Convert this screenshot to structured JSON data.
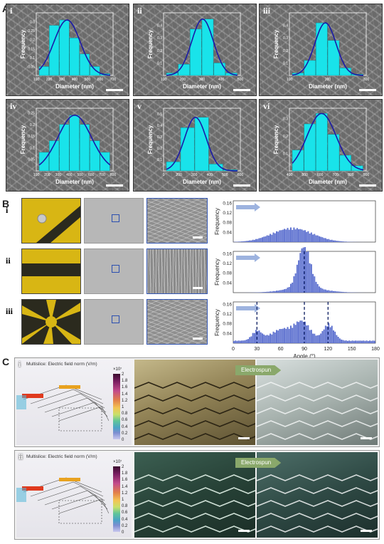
{
  "panel_A": {
    "letter": "A",
    "subpanels": [
      {
        "roman": "i",
        "ylabel": "Frequency",
        "xlabel": "Diameter (nm)",
        "xticks": [
          "100",
          "200",
          "300",
          "400",
          "500",
          "600",
          "700"
        ],
        "yticks": [
          "0.05",
          "0.1",
          "0.15",
          "0.2",
          "0.25",
          "0.3"
        ],
        "bars": [
          0.05,
          0.28,
          0.31,
          0.21,
          0.12,
          0.05,
          0.01
        ],
        "ymax": 0.35
      },
      {
        "roman": "ii",
        "ylabel": "Frequency",
        "xlabel": "Diameter (nm)",
        "xticks": [
          "100",
          "200",
          "300",
          "400",
          "500"
        ],
        "yticks": [
          "0.1",
          "0.2",
          "0.3",
          "0.4"
        ],
        "bars": [
          0.02,
          0.09,
          0.37,
          0.45,
          0.1,
          0.02
        ],
        "ymax": 0.5
      },
      {
        "roman": "iii",
        "ylabel": "Frequency",
        "xlabel": "Diameter (nm)",
        "xticks": [
          "100",
          "200",
          "300"
        ],
        "yticks": [
          "0.1",
          "0.2",
          "0.3",
          "0.4"
        ],
        "bars": [
          0.02,
          0.12,
          0.42,
          0.28,
          0.06,
          0.01
        ],
        "ymax": 0.5
      },
      {
        "roman": "iv",
        "ylabel": "Frequency",
        "xlabel": "Diameter (nm)",
        "xticks": [
          "100",
          "200",
          "300",
          "400",
          "500",
          "600",
          "700",
          "800"
        ],
        "yticks": [
          "0.05",
          "0.1",
          "0.15",
          "0.2",
          "0.25"
        ],
        "bars": [
          0.08,
          0.13,
          0.2,
          0.24,
          0.2,
          0.13,
          0.08
        ],
        "ymax": 0.27
      },
      {
        "roman": "v",
        "ylabel": "Frequency",
        "xlabel": "Diameter (nm)",
        "xticks": [
          "0",
          "200",
          "300",
          "400",
          "500",
          "600"
        ],
        "yticks": [
          "0.1",
          "0.2",
          "0.3",
          "0.4",
          "0.5"
        ],
        "bars": [
          0.08,
          0.38,
          0.47,
          0.06,
          0.01
        ],
        "ymax": 0.55
      },
      {
        "roman": "vi",
        "ylabel": "Frequency",
        "xlabel": "Diameter (nm)",
        "xticks": [
          "400",
          "500",
          "600",
          "700",
          "800",
          "900"
        ],
        "yticks": [
          "0.1",
          "0.2",
          "0.3"
        ],
        "bars": [
          0.12,
          0.27,
          0.33,
          0.21,
          0.09,
          0.03
        ],
        "ymax": 0.36
      }
    ]
  },
  "panel_B": {
    "letter": "B",
    "rows": [
      {
        "roman": "i"
      },
      {
        "roman": "ii"
      },
      {
        "roman": "iii"
      }
    ],
    "ylabel": "Frequency",
    "xlabel": "Angle (°)",
    "xticks": [
      "0",
      "30",
      "60",
      "90",
      "120",
      "150",
      "180"
    ],
    "yticks": [
      "0.00",
      "0.04",
      "0.08",
      "0.12",
      "0.16"
    ]
  },
  "panel_C": {
    "letter": "C",
    "rows": [
      {
        "roman": "i",
        "sim_title": "Multislice: Electric field norm (V/m)",
        "exponent": "×10⁷",
        "arrow_text": "Electrospun",
        "cbar_ticks": [
          "2",
          "1.8",
          "1.6",
          "1.4",
          "1.2",
          "1",
          "0.8",
          "0.6",
          "0.4",
          "0.2",
          "0"
        ]
      },
      {
        "roman": "ii",
        "sim_title": "Multislice: Electric field norm (V/m)",
        "exponent": "×10⁷",
        "arrow_text": "Electrospun",
        "cbar_ticks": [
          "2",
          "1.8",
          "1.6",
          "1.4",
          "1.2",
          "1",
          "0.8",
          "0.6",
          "0.4",
          "0.2",
          "0"
        ]
      }
    ]
  },
  "chart_data": [
    {
      "type": "bar",
      "title": "",
      "xlabel": "Diameter (nm)",
      "ylabel": "Frequency",
      "series": [
        {
          "values": [
            0.05,
            0.28,
            0.31,
            0.21,
            0.12,
            0.05,
            0.01
          ]
        }
      ]
    },
    {
      "type": "bar",
      "title": "",
      "xlabel": "Diameter (nm)",
      "ylabel": "Frequency",
      "series": [
        {
          "values": [
            0.02,
            0.09,
            0.37,
            0.45,
            0.1,
            0.02
          ]
        }
      ]
    },
    {
      "type": "bar",
      "title": "",
      "xlabel": "Diameter (nm)",
      "ylabel": "Frequency",
      "series": [
        {
          "values": [
            0.02,
            0.12,
            0.42,
            0.28,
            0.06,
            0.01
          ]
        }
      ]
    },
    {
      "type": "bar",
      "title": "",
      "xlabel": "Diameter (nm)",
      "ylabel": "Frequency",
      "series": [
        {
          "values": [
            0.08,
            0.13,
            0.2,
            0.24,
            0.2,
            0.13,
            0.08
          ]
        }
      ]
    },
    {
      "type": "bar",
      "title": "",
      "xlabel": "Diameter (nm)",
      "ylabel": "Frequency",
      "series": [
        {
          "values": [
            0.08,
            0.38,
            0.47,
            0.06,
            0.01
          ]
        }
      ]
    },
    {
      "type": "bar",
      "title": "",
      "xlabel": "Diameter (nm)",
      "ylabel": "Frequency",
      "series": [
        {
          "values": [
            0.12,
            0.27,
            0.33,
            0.21,
            0.09,
            0.03
          ]
        }
      ]
    },
    {
      "type": "bar",
      "title": "",
      "xlabel": "Angle (°)",
      "ylabel": "Frequency",
      "xlim": [
        0,
        180
      ],
      "ylim": [
        0,
        0.17
      ],
      "series": [
        {
          "name": "",
          "peak_center": 75,
          "peak_height": 0.055,
          "peak_width": 28
        }
      ]
    },
    {
      "type": "bar",
      "title": "",
      "xlabel": "Angle (°)",
      "ylabel": "Frequency",
      "xlim": [
        0,
        180
      ],
      "ylim": [
        0,
        0.17
      ],
      "series": [
        {
          "name": "",
          "peak_center": 90,
          "peak_height": 0.165,
          "peak_width": 9
        }
      ]
    },
    {
      "type": "bar",
      "title": "",
      "xlabel": "Angle (°)",
      "ylabel": "Frequency",
      "xlim": [
        0,
        180
      ],
      "ylim": [
        0,
        0.17
      ],
      "dashed_markers": [
        30,
        90,
        120
      ],
      "series": [
        {
          "name": "",
          "peaks": [
            [
              30,
              0.04
            ],
            [
              60,
              0.05
            ],
            [
              90,
              0.075
            ],
            [
              120,
              0.065
            ]
          ]
        }
      ]
    }
  ]
}
